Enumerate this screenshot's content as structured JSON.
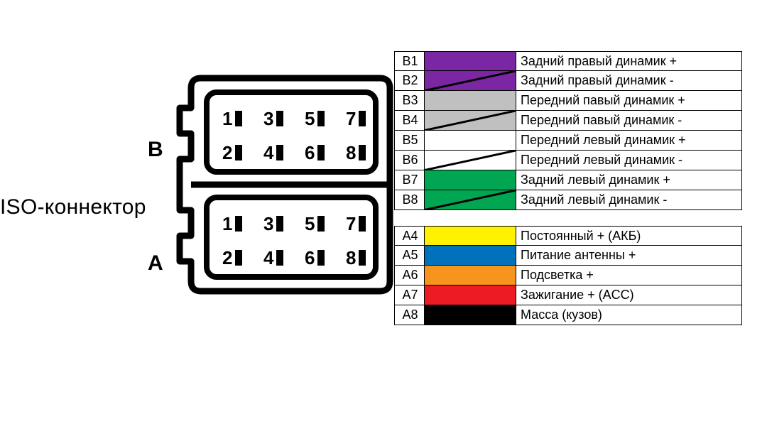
{
  "labels": {
    "iso": "ISO-коннектор",
    "B": "B",
    "A": "A"
  },
  "connector": {
    "stroke": "#000000",
    "stroke_width": 9,
    "block_rows": [
      {
        "label_key": "labels.B",
        "pins": [
          "1",
          "3",
          "5",
          "7",
          "2",
          "4",
          "6",
          "8"
        ]
      },
      {
        "label_key": "labels.A",
        "pins": [
          "1",
          "3",
          "5",
          "7",
          "2",
          "4",
          "6",
          "8"
        ]
      }
    ]
  },
  "legend": {
    "border_color": "#000000",
    "groups": [
      [
        {
          "pin": "B1",
          "color": "#7b26a3",
          "striped": false,
          "desc": "Задний правый динамик +"
        },
        {
          "pin": "B2",
          "color": "#7b26a3",
          "striped": true,
          "desc": "Задний правый динамик -"
        },
        {
          "pin": "B3",
          "color": "#c0c0c0",
          "striped": false,
          "desc": "Передний павый динамик +"
        },
        {
          "pin": "B4",
          "color": "#c0c0c0",
          "striped": true,
          "desc": "Передний павый динамик -"
        },
        {
          "pin": "B5",
          "color": "#ffffff",
          "striped": false,
          "desc": "Передний левый динамик +"
        },
        {
          "pin": "B6",
          "color": "#ffffff",
          "striped": true,
          "desc": "Передний левый динамик -"
        },
        {
          "pin": "B7",
          "color": "#00a651",
          "striped": false,
          "desc": "Задний левый динамик +"
        },
        {
          "pin": "B8",
          "color": "#00a651",
          "striped": true,
          "desc": "Задний левый динамик -"
        }
      ],
      [
        {
          "pin": "A4",
          "color": "#fff200",
          "striped": false,
          "desc": "Постоянный + (АКБ)"
        },
        {
          "pin": "A5",
          "color": "#0072bc",
          "striped": false,
          "desc": "Питание антенны +"
        },
        {
          "pin": "A6",
          "color": "#f7941d",
          "striped": false,
          "desc": "Подсветка +"
        },
        {
          "pin": "A7",
          "color": "#ed1c24",
          "striped": false,
          "desc": "Зажигание + (ACC)"
        },
        {
          "pin": "A8",
          "color": "#000000",
          "striped": false,
          "desc": "Масса (кузов)"
        }
      ]
    ]
  }
}
